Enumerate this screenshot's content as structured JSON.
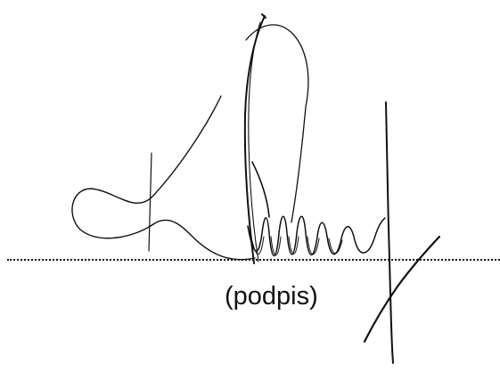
{
  "signature_block": {
    "caption": "(podpis)",
    "ink_color": "#111111"
  }
}
